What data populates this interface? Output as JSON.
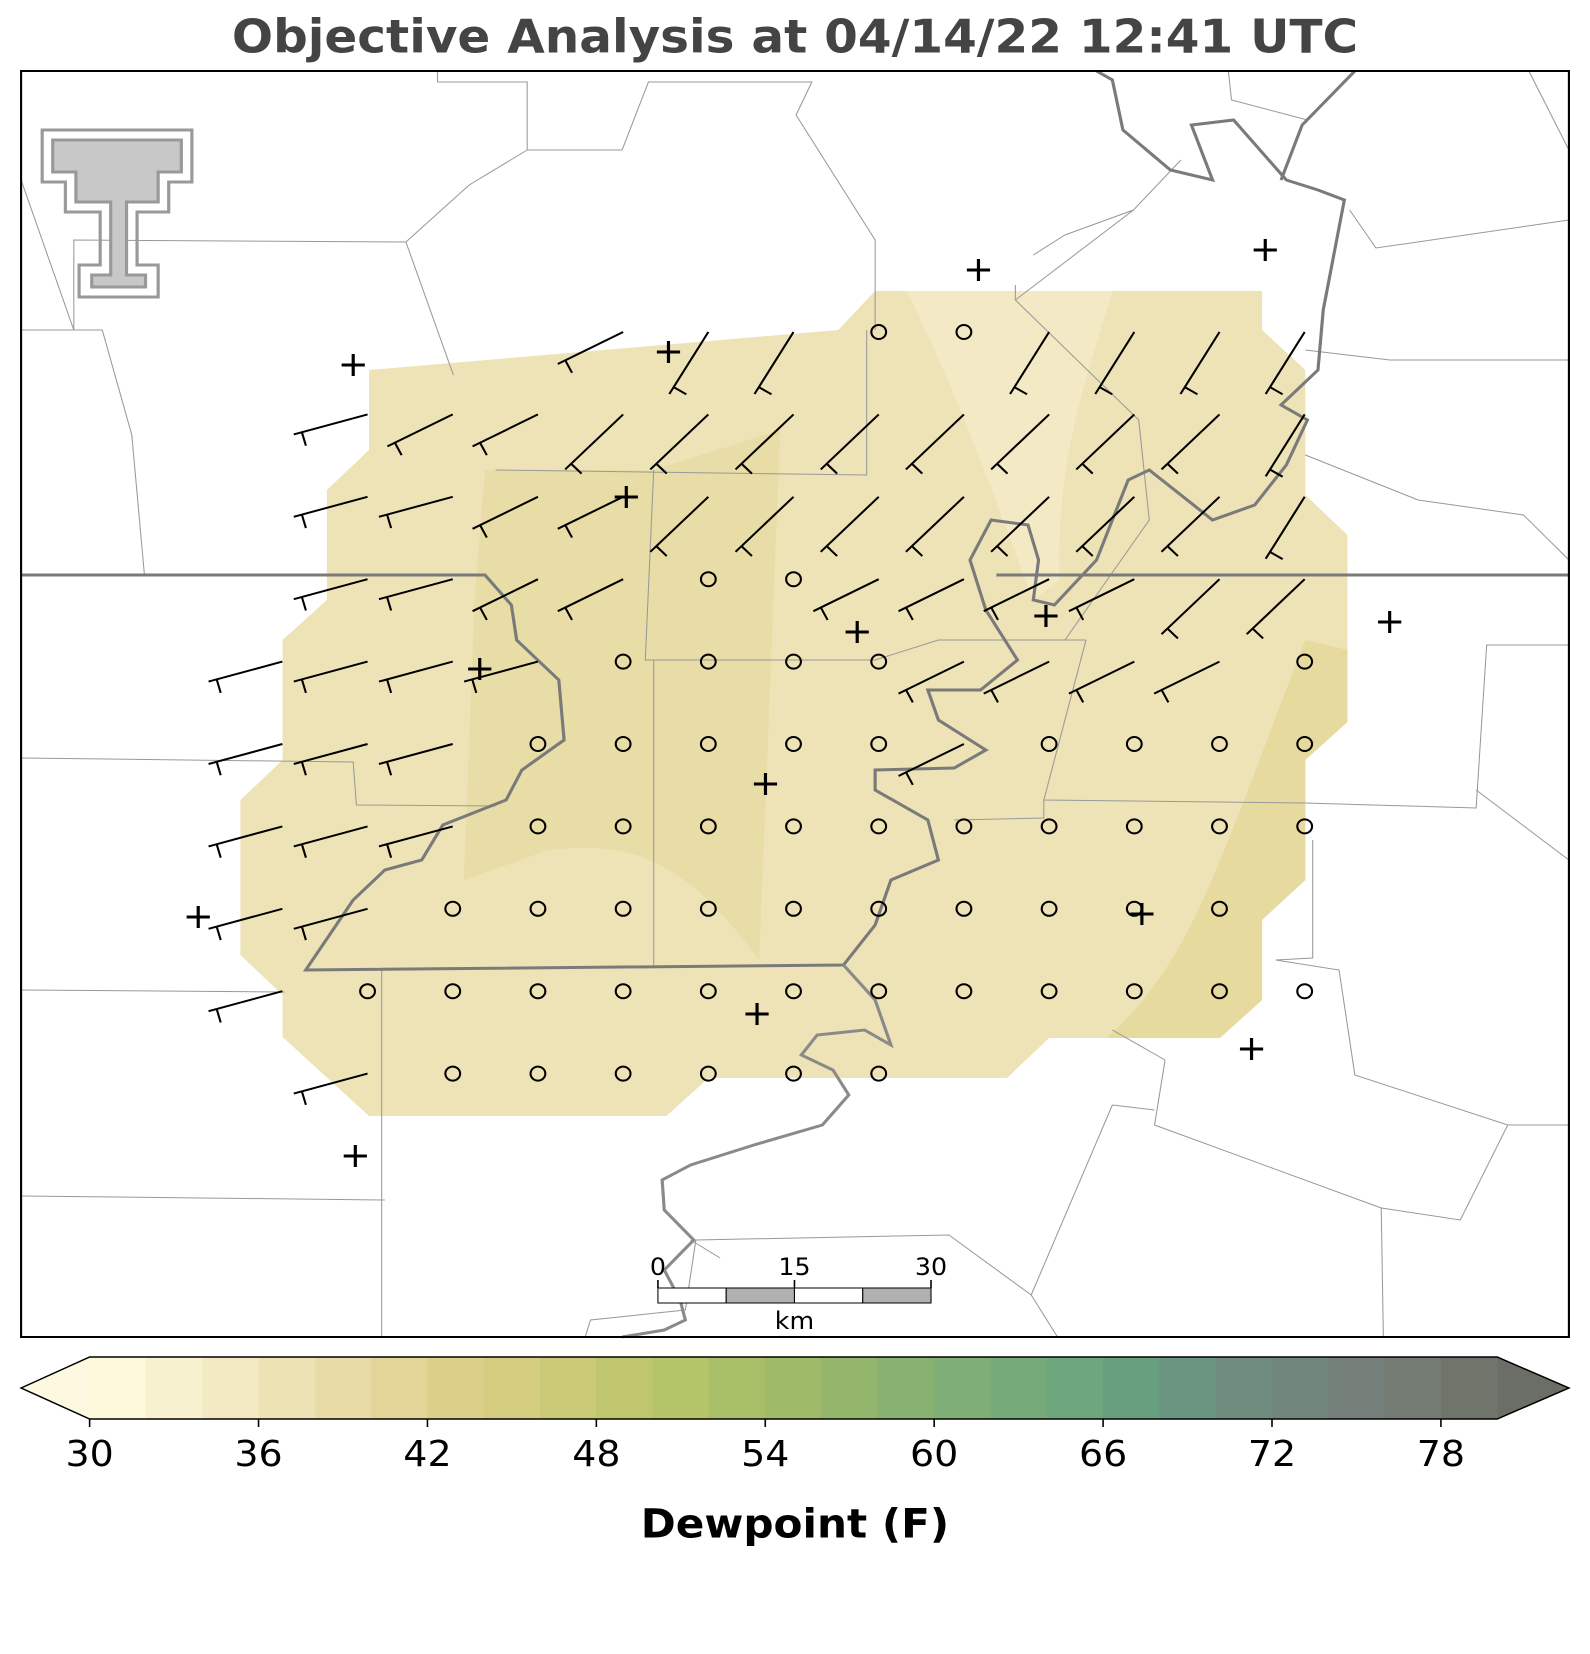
{
  "chart_data": {
    "type": "contour-map",
    "title": "Objective Analysis at 04/14/22 12:41 UTC",
    "colorbar": {
      "label": "Dewpoint (F)",
      "lim": [
        30,
        80
      ],
      "ticks": [
        30,
        36,
        42,
        48,
        54,
        60,
        66,
        72,
        78
      ],
      "colors": [
        "#fdf8dc",
        "#f8f1d0",
        "#f3eac3",
        "#ede2b4",
        "#e8dba6",
        "#e3d497",
        "#dccf8a",
        "#d4cc7e",
        "#cac976",
        "#bfc66e",
        "#b4c468",
        "#a9bf67",
        "#9fba68",
        "#94b56c",
        "#89b271",
        "#7fae76",
        "#76aa7a",
        "#6ea67d",
        "#67a07f",
        "#6a9581",
        "#6d8c7e",
        "#71877b",
        "#737f78",
        "#737b73",
        "#70756c"
      ],
      "under_color": "#fdf9e0",
      "over_color": "#6a6e66"
    },
    "scale_bar": {
      "ticks": [
        0,
        15,
        30
      ],
      "unit": "km"
    }
  }
}
